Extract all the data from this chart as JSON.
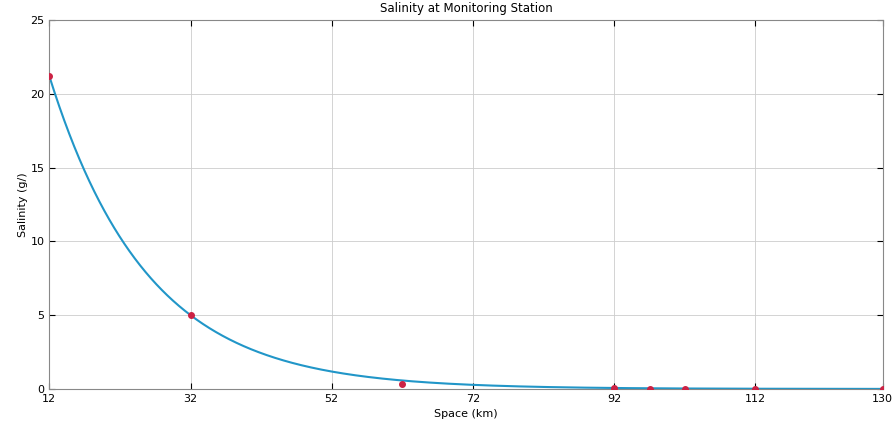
{
  "title": "Salinity at Monitoring Station",
  "xlabel": "Space (km)",
  "ylabel": "Salinity (g/)",
  "xlim": [
    12,
    130
  ],
  "ylim": [
    0,
    25
  ],
  "xticks": [
    12,
    32,
    52,
    72,
    92,
    112,
    130
  ],
  "yticks": [
    0,
    5,
    10,
    15,
    20,
    25
  ],
  "data_points_x": [
    12,
    32,
    62,
    92,
    97,
    102,
    112,
    130
  ],
  "data_points_y": [
    21.2,
    5.0,
    0.35,
    0.05,
    0.03,
    0.02,
    0.01,
    0.005
  ],
  "line_color": "#2196C8",
  "marker_color": "#CC2244",
  "marker_size": 4,
  "line_width": 1.5,
  "grid_color": "#CCCCCC",
  "bg_color": "#FFFFFF",
  "title_fontsize": 8.5,
  "label_fontsize": 8,
  "tick_fontsize": 8
}
